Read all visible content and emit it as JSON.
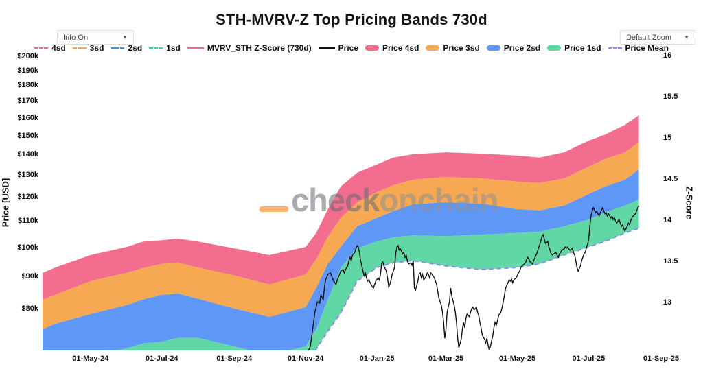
{
  "title": "STH-MVRV-Z Top Pricing Bands 730d",
  "controls": {
    "info_label": "Info On",
    "zoom_label": "Default Zoom",
    "caret": "▼"
  },
  "watermark": {
    "word1": "check",
    "word2": "onchain",
    "underscore_color": "#f7a84f"
  },
  "legend": [
    {
      "label": "4sd",
      "marker": "dash",
      "color": "#f2688c"
    },
    {
      "label": "3sd",
      "marker": "dash",
      "color": "#f7a84f"
    },
    {
      "label": "2sd",
      "marker": "dash",
      "color": "#4a86f5"
    },
    {
      "label": "1sd",
      "marker": "dash",
      "color": "#3bd6a0"
    },
    {
      "label": "MVRV_STH Z-Score (730d)",
      "marker": "line",
      "color": "#f2688c"
    },
    {
      "label": "Price",
      "marker": "line",
      "color": "#111111"
    },
    {
      "label": "Price 4sd",
      "marker": "band",
      "color": "#f36d8e"
    },
    {
      "label": "Price 3sd",
      "marker": "band",
      "color": "#f6a853"
    },
    {
      "label": "Price 2sd",
      "marker": "band",
      "color": "#5e97f6"
    },
    {
      "label": "Price 1sd",
      "marker": "band",
      "color": "#62d7a6"
    },
    {
      "label": "Price Mean",
      "marker": "dash",
      "color": "#9089ee"
    }
  ],
  "axes": {
    "y_left": {
      "title": "Price [USD]",
      "scale": "log",
      "tick_labels": [
        "$200k",
        "$190k",
        "$180k",
        "$170k",
        "$160k",
        "$150k",
        "$140k",
        "$130k",
        "$120k",
        "$110k",
        "$100k",
        "$90k",
        "$80k"
      ],
      "tick_values_k": [
        200,
        190,
        180,
        170,
        160,
        150,
        140,
        130,
        120,
        110,
        100,
        90,
        80
      ]
    },
    "y_right": {
      "title": "Z-Score",
      "tick_labels": [
        "16",
        "15.5",
        "15",
        "14.5",
        "14",
        "13.5",
        "13"
      ],
      "tick_values": [
        16,
        15.5,
        15,
        14.5,
        14,
        13.5,
        13
      ]
    },
    "x": {
      "day0": "2024-03-21",
      "tick_labels": [
        "01-May-24",
        "01-Jul-24",
        "01-Sep-24",
        "01-Nov-24",
        "01-Jan-25",
        "01-Mar-25",
        "01-May-25",
        "01-Jul-25",
        "01-Sep-25"
      ],
      "tick_days": [
        41,
        102,
        164,
        225,
        286,
        345,
        406,
        467,
        529
      ]
    }
  },
  "chart_data": {
    "type": "area",
    "title": "STH-MVRV-Z Top Pricing Bands 730d",
    "x_unit": "days since 2024-03-21",
    "price_unit": "USD thousands",
    "ylim_price_k": [
      69,
      204
    ],
    "zlim": [
      12.8,
      16.15
    ],
    "grid": false,
    "legend_position": "top",
    "band_days": [
      0,
      11,
      41,
      72,
      86,
      102,
      116,
      133,
      164,
      194,
      225,
      234,
      244,
      255,
      269,
      286,
      300,
      317,
      345,
      376,
      406,
      425,
      446,
      467,
      481,
      498,
      510
    ],
    "bands": {
      "price_4sd": [
        91.4,
        93.2,
        97.5,
        100.4,
        102.4,
        102.9,
        103.5,
        102.4,
        99.9,
        97.5,
        100.4,
        105.6,
        115.1,
        125,
        131.4,
        135.4,
        138.8,
        140.5,
        141.5,
        140.8,
        139.8,
        138.8,
        141.5,
        147.6,
        150.9,
        156.3,
        161.9
      ],
      "price_3sd": [
        82.9,
        84.4,
        88.7,
        91.4,
        93,
        94.4,
        94.8,
        93.2,
        90.5,
        87.6,
        90.9,
        96,
        104.2,
        111.5,
        118,
        122.5,
        125.6,
        128.1,
        129.4,
        128.7,
        127.2,
        126.6,
        128.7,
        134.3,
        138.1,
        141.5,
        146.9
      ],
      "price_2sd": [
        74.5,
        76,
        78.7,
        81.3,
        83,
        84.4,
        84.8,
        83.2,
        80.3,
        77.9,
        80.7,
        86.5,
        94.4,
        100.4,
        108.2,
        111.5,
        114.3,
        117.2,
        118,
        117.4,
        115.1,
        114.6,
        116.6,
        121.6,
        125,
        128.1,
        133
      ],
      "price_1sd": [
        66.5,
        67.1,
        67.7,
        69.5,
        70.8,
        71.2,
        72.2,
        72.2,
        70,
        67.8,
        70,
        74.5,
        83,
        93,
        100,
        102.4,
        104,
        104.7,
        104.4,
        105,
        105.6,
        106.1,
        108.2,
        110.9,
        113.7,
        116.6,
        119.2
      ],
      "price_mean": [
        62,
        62.4,
        63,
        64,
        65.2,
        66.3,
        67,
        67.2,
        65.1,
        63.1,
        65.1,
        69.3,
        74,
        79,
        88.7,
        93.2,
        94.8,
        95.5,
        93.7,
        92.5,
        93.2,
        94.4,
        97.5,
        100.4,
        102.4,
        105.6,
        107.4
      ]
    },
    "price_series": [
      [
        226,
        67.9
      ],
      [
        229,
        70
      ],
      [
        231,
        74.5
      ],
      [
        233,
        79.3
      ],
      [
        235,
        82.3
      ],
      [
        237,
        81.9
      ],
      [
        238,
        84.4
      ],
      [
        240,
        82.9
      ],
      [
        241,
        86.5
      ],
      [
        242,
        89.1
      ],
      [
        244,
        90.9
      ],
      [
        246,
        91.4
      ],
      [
        247,
        90.5
      ],
      [
        249,
        88.7
      ],
      [
        251,
        87.6
      ],
      [
        252,
        89.1
      ],
      [
        254,
        90.9
      ],
      [
        255,
        92
      ],
      [
        257,
        92.5
      ],
      [
        258,
        91.4
      ],
      [
        260,
        93.2
      ],
      [
        261,
        93.7
      ],
      [
        262,
        95.5
      ],
      [
        263,
        96.7
      ],
      [
        264,
        95.5
      ],
      [
        265,
        97.5
      ],
      [
        267,
        98.4
      ],
      [
        268,
        99.9
      ],
      [
        269,
        100.9
      ],
      [
        270,
        100.4
      ],
      [
        271,
        98.4
      ],
      [
        272,
        95.5
      ],
      [
        274,
        92
      ],
      [
        275,
        90.5
      ],
      [
        276,
        91.4
      ],
      [
        277,
        89.8
      ],
      [
        278,
        88.7
      ],
      [
        279,
        89.1
      ],
      [
        281,
        87.6
      ],
      [
        282,
        86.9
      ],
      [
        283,
        86.5
      ],
      [
        284,
        87.6
      ],
      [
        285,
        88.7
      ],
      [
        287,
        89.8
      ],
      [
        288,
        89.1
      ],
      [
        289,
        90.9
      ],
      [
        290,
        94.4
      ],
      [
        291,
        95.1
      ],
      [
        292,
        93.7
      ],
      [
        294,
        92
      ],
      [
        295,
        89.8
      ],
      [
        296,
        86.9
      ],
      [
        297,
        87.6
      ],
      [
        298,
        89.1
      ],
      [
        299,
        90.9
      ],
      [
        301,
        93.2
      ],
      [
        302,
        97.9
      ],
      [
        303,
        100.4
      ],
      [
        304,
        100.9
      ],
      [
        305,
        99.2
      ],
      [
        306,
        99.7
      ],
      [
        308,
        97.9
      ],
      [
        309,
        98.4
      ],
      [
        310,
        96.7
      ],
      [
        311,
        97.5
      ],
      [
        312,
        95.5
      ],
      [
        313,
        94.4
      ],
      [
        315,
        94.8
      ],
      [
        316,
        93.9
      ],
      [
        317,
        95.5
      ],
      [
        318,
        86.5
      ],
      [
        319,
        85.9
      ],
      [
        321,
        88.7
      ],
      [
        322,
        90.9
      ],
      [
        323,
        91.4
      ],
      [
        324,
        89.8
      ],
      [
        325,
        90.9
      ],
      [
        326,
        89.1
      ],
      [
        328,
        90.2
      ],
      [
        329,
        91.4
      ],
      [
        330,
        90.9
      ],
      [
        331,
        89.8
      ],
      [
        332,
        91.4
      ],
      [
        333,
        90.9
      ],
      [
        335,
        89.8
      ],
      [
        336,
        88.7
      ],
      [
        337,
        87.6
      ],
      [
        338,
        85.4
      ],
      [
        339,
        83.3
      ],
      [
        341,
        81.3
      ],
      [
        342,
        79.3
      ],
      [
        343,
        76.4
      ],
      [
        344,
        72.1
      ],
      [
        345,
        74.5
      ],
      [
        346,
        79.3
      ],
      [
        348,
        82.3
      ],
      [
        349,
        86.5
      ],
      [
        350,
        84
      ],
      [
        352,
        81.3
      ],
      [
        353,
        79.3
      ],
      [
        354,
        76.4
      ],
      [
        355,
        72.2
      ],
      [
        356,
        69.7
      ],
      [
        358,
        71.8
      ],
      [
        359,
        74.5
      ],
      [
        360,
        76.4
      ],
      [
        361,
        74.9
      ],
      [
        362,
        77.4
      ],
      [
        363,
        78.7
      ],
      [
        365,
        78
      ],
      [
        366,
        79.3
      ],
      [
        367,
        80.3
      ],
      [
        368,
        80.7
      ],
      [
        369,
        79.9
      ],
      [
        371,
        80.7
      ],
      [
        372,
        79.3
      ],
      [
        373,
        78.3
      ],
      [
        374,
        76.4
      ],
      [
        375,
        74.9
      ],
      [
        376,
        73
      ],
      [
        378,
        71.8
      ],
      [
        379,
        70.9
      ],
      [
        380,
        72.1
      ],
      [
        381,
        70.4
      ],
      [
        382,
        69.1
      ],
      [
        383,
        70
      ],
      [
        385,
        72.7
      ],
      [
        386,
        74.9
      ],
      [
        387,
        76.4
      ],
      [
        388,
        75.5
      ],
      [
        389,
        76.8
      ],
      [
        390,
        78.3
      ],
      [
        392,
        79.3
      ],
      [
        393,
        80.7
      ],
      [
        394,
        82.3
      ],
      [
        395,
        84.4
      ],
      [
        396,
        86.5
      ],
      [
        398,
        88.2
      ],
      [
        399,
        89.1
      ],
      [
        400,
        88.7
      ],
      [
        401,
        89.4
      ],
      [
        402,
        88.2
      ],
      [
        403,
        89.1
      ],
      [
        405,
        89.8
      ],
      [
        406,
        90.5
      ],
      [
        407,
        91.4
      ],
      [
        408,
        92
      ],
      [
        409,
        93.2
      ],
      [
        410,
        93.7
      ],
      [
        412,
        94.4
      ],
      [
        413,
        94.8
      ],
      [
        414,
        96
      ],
      [
        415,
        96.7
      ],
      [
        416,
        96
      ],
      [
        417,
        95.1
      ],
      [
        419,
        94.4
      ],
      [
        420,
        95.5
      ],
      [
        421,
        96.5
      ],
      [
        422,
        97.5
      ],
      [
        423,
        98.4
      ],
      [
        424,
        99.9
      ],
      [
        426,
        102.4
      ],
      [
        427,
        104.2
      ],
      [
        428,
        105
      ],
      [
        429,
        103.5
      ],
      [
        430,
        101.7
      ],
      [
        432,
        102.4
      ],
      [
        433,
        100.4
      ],
      [
        434,
        99.2
      ],
      [
        435,
        97.9
      ],
      [
        436,
        97.5
      ],
      [
        437,
        97.9
      ],
      [
        439,
        98.4
      ],
      [
        440,
        97.5
      ],
      [
        441,
        96.7
      ],
      [
        442,
        97.9
      ],
      [
        443,
        98.4
      ],
      [
        444,
        99.2
      ],
      [
        446,
        99.7
      ],
      [
        447,
        100.4
      ],
      [
        448,
        99.9
      ],
      [
        449,
        100.4
      ],
      [
        450,
        99.7
      ],
      [
        451,
        99.2
      ],
      [
        453,
        99.9
      ],
      [
        454,
        98.4
      ],
      [
        455,
        97.5
      ],
      [
        456,
        95.5
      ],
      [
        457,
        93.2
      ],
      [
        458,
        92
      ],
      [
        460,
        93.7
      ],
      [
        461,
        95.5
      ],
      [
        462,
        96.7
      ],
      [
        463,
        97.9
      ],
      [
        464,
        98.4
      ],
      [
        465,
        99.9
      ],
      [
        467,
        102.9
      ],
      [
        468,
        108.2
      ],
      [
        469,
        112.3
      ],
      [
        470,
        114.3
      ],
      [
        471,
        115.7
      ],
      [
        473,
        113.7
      ],
      [
        474,
        114.3
      ],
      [
        475,
        113.2
      ],
      [
        476,
        112.3
      ],
      [
        477,
        113.7
      ],
      [
        479,
        115.7
      ],
      [
        480,
        114.3
      ],
      [
        481,
        113.2
      ],
      [
        482,
        113.7
      ],
      [
        483,
        112.3
      ],
      [
        484,
        113.2
      ],
      [
        486,
        111.5
      ],
      [
        487,
        112.3
      ],
      [
        488,
        110.9
      ],
      [
        489,
        111.5
      ],
      [
        490,
        110.4
      ],
      [
        491,
        109.5
      ],
      [
        493,
        110.9
      ],
      [
        494,
        109.5
      ],
      [
        495,
        108.2
      ],
      [
        496,
        108.8
      ],
      [
        497,
        107.4
      ],
      [
        498,
        106.4
      ],
      [
        500,
        108.2
      ],
      [
        501,
        109.5
      ],
      [
        502,
        108.8
      ],
      [
        503,
        110.4
      ],
      [
        504,
        111.5
      ],
      [
        505,
        112.3
      ],
      [
        507,
        113.2
      ],
      [
        508,
        114.3
      ],
      [
        509,
        115.7
      ],
      [
        510,
        116.6
      ]
    ]
  }
}
